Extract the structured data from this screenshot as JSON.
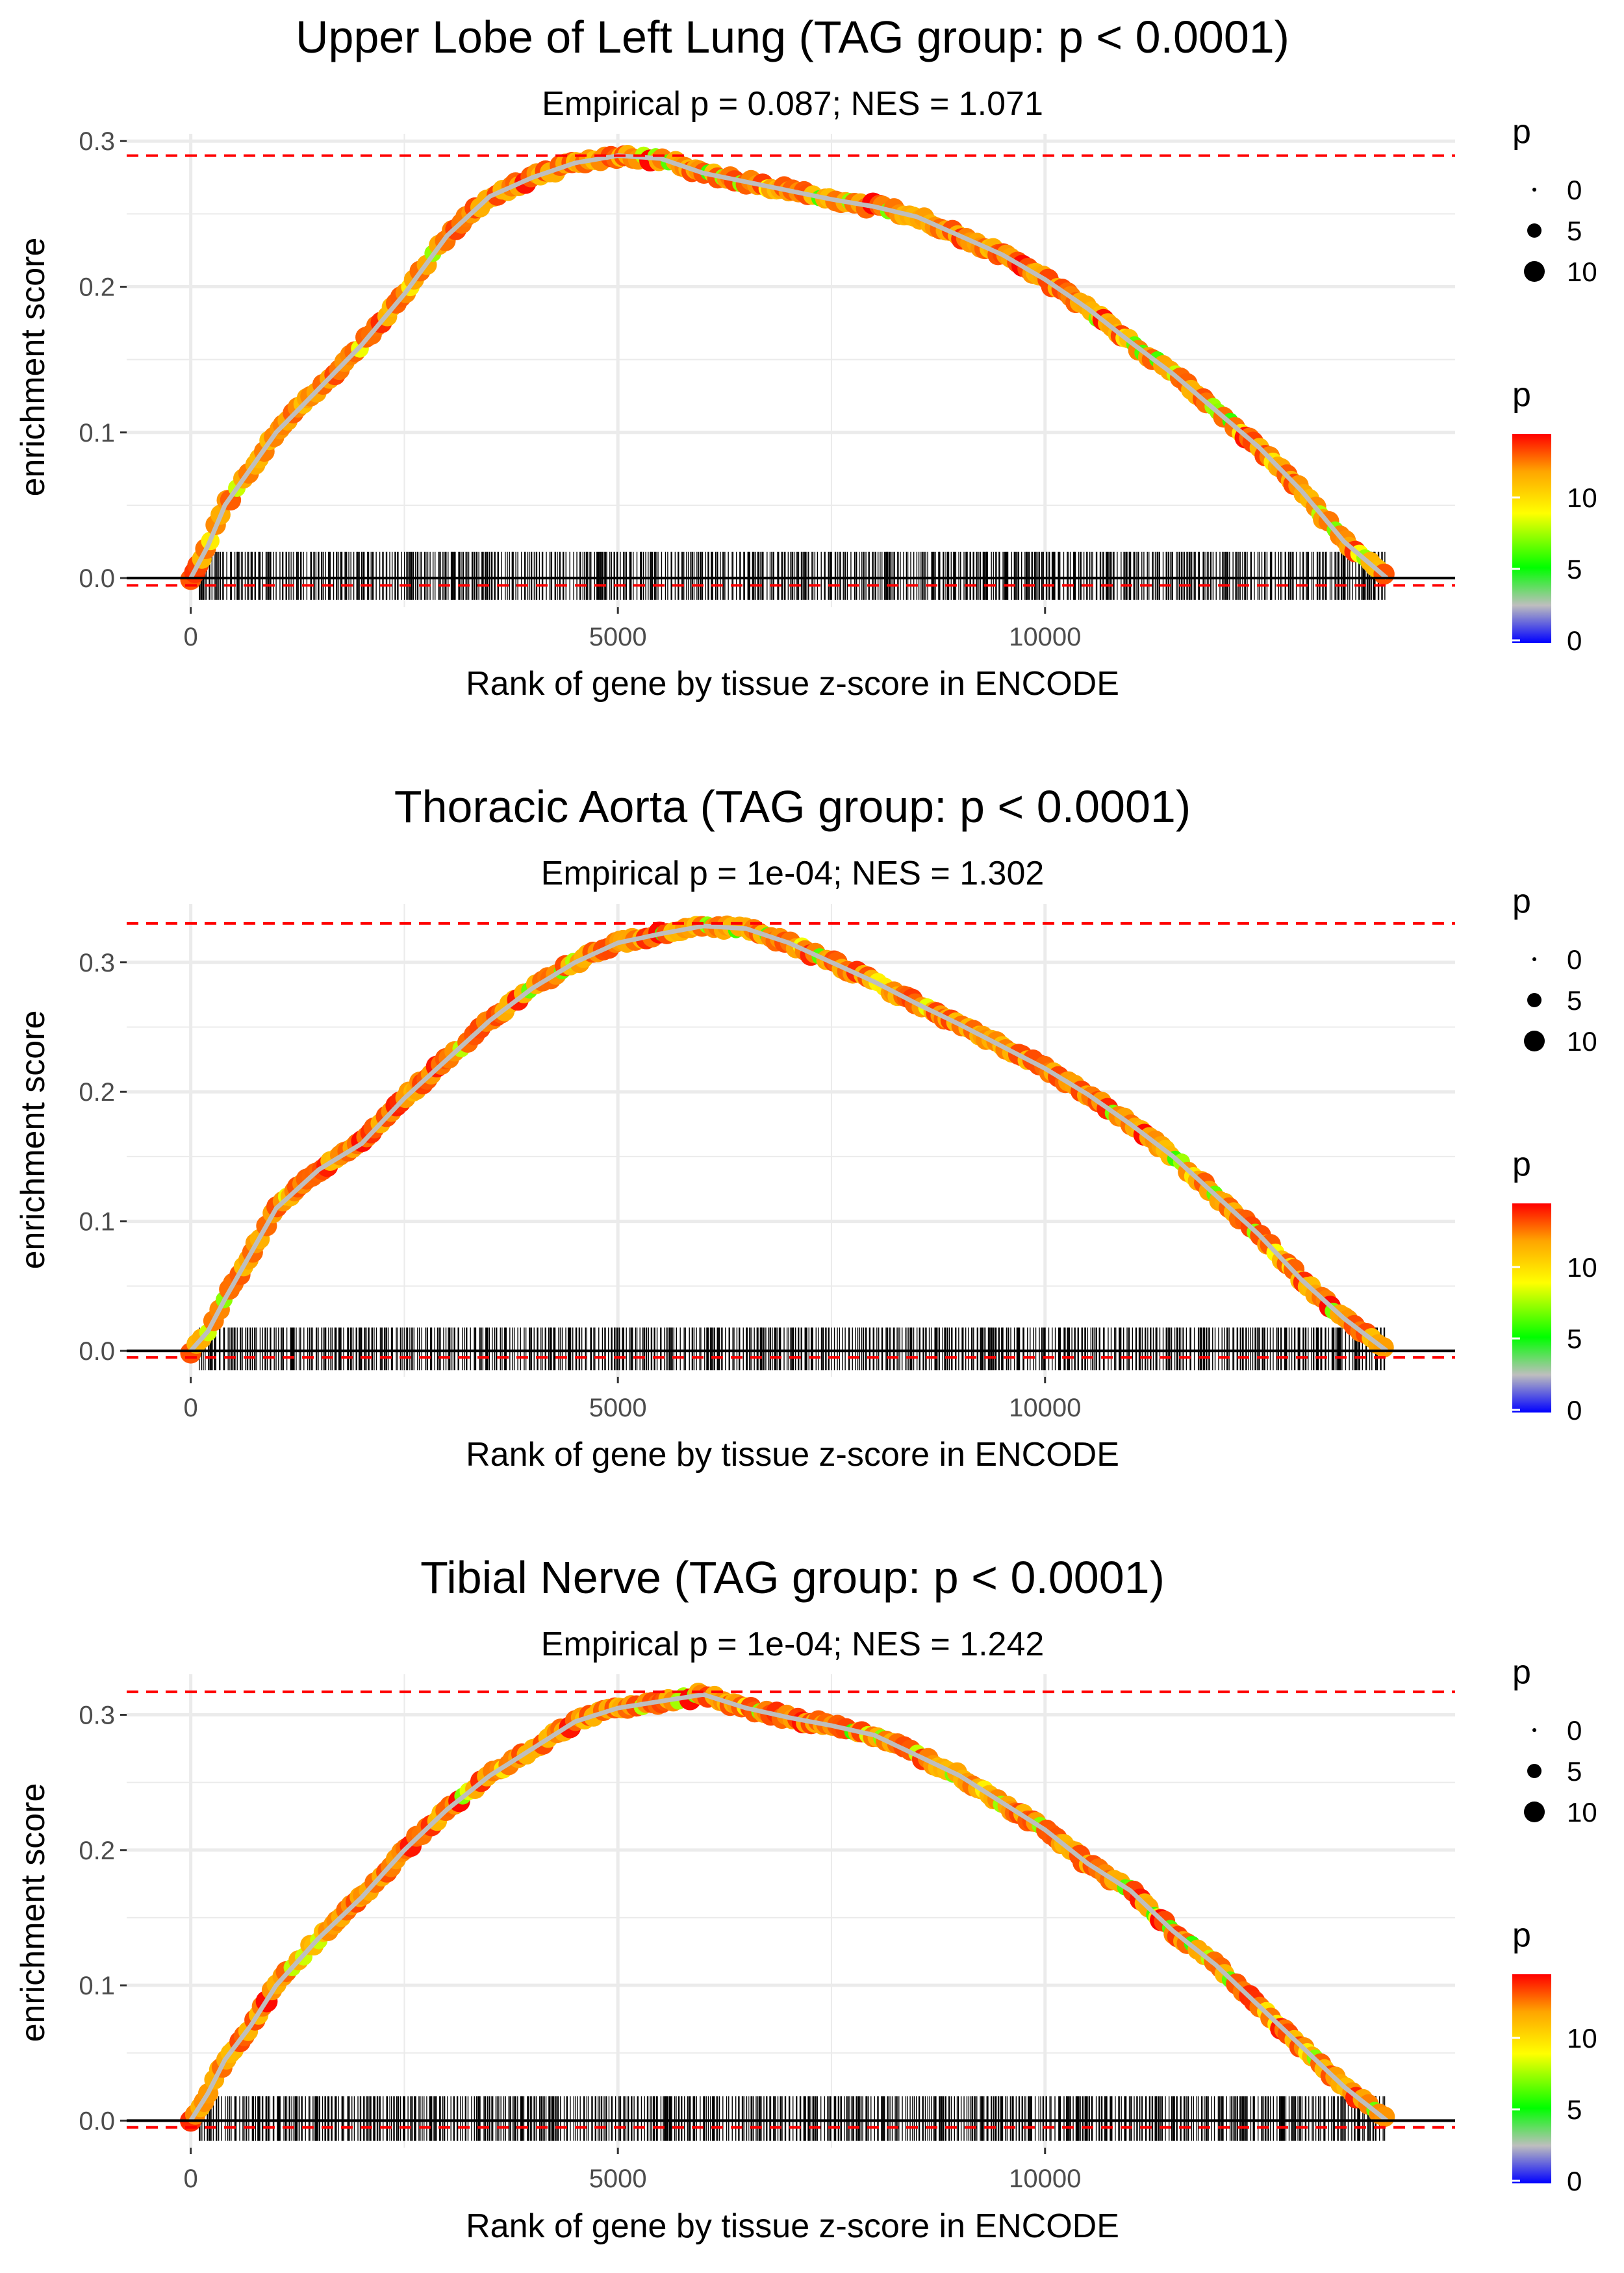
{
  "chart_data": [
    {
      "type": "line",
      "title": "Upper Lobe of Left Lung (TAG group: p < 0.0001)",
      "subtitle": "Empirical p = 0.087; NES = 1.071",
      "xlabel": "Rank of gene by tissue z-score in ENCODE",
      "ylabel": "enrichment score",
      "xlim": [
        -750,
        14800
      ],
      "ylim": [
        -0.02,
        0.305
      ],
      "x_ticks": [
        0,
        5000,
        10000
      ],
      "x_tick_labels": [
        "0",
        "5000",
        "10000"
      ],
      "y_ticks": [
        0.0,
        0.1,
        0.2,
        0.3
      ],
      "y_tick_labels": [
        "0.0",
        "0.1",
        "0.2",
        "0.3"
      ],
      "max_es": 0.29,
      "min_es": -0.005,
      "curve": {
        "x": [
          0,
          200,
          400,
          700,
          1000,
          1500,
          2000,
          2500,
          3000,
          3500,
          4000,
          4500,
          5000,
          5500,
          6000,
          6500,
          7000,
          7500,
          8000,
          8500,
          9000,
          9500,
          10000,
          10500,
          11000,
          11500,
          12000,
          12500,
          13000,
          13500,
          14000
        ],
        "y": [
          0.0,
          0.022,
          0.05,
          0.075,
          0.1,
          0.13,
          0.16,
          0.195,
          0.235,
          0.262,
          0.275,
          0.285,
          0.29,
          0.288,
          0.278,
          0.272,
          0.266,
          0.26,
          0.255,
          0.248,
          0.235,
          0.222,
          0.205,
          0.185,
          0.162,
          0.14,
          0.115,
          0.09,
          0.06,
          0.025,
          0.0
        ]
      },
      "rug": {
        "x_start": 100,
        "x_end": 14000,
        "ymin": -0.015,
        "ymax": 0.018
      },
      "size_legend": {
        "title": "p",
        "labels": [
          "0",
          "5",
          "10"
        ]
      },
      "color_legend": {
        "title": "p",
        "labels": [
          "0",
          "5",
          "10"
        ],
        "range": [
          0,
          14.5
        ]
      }
    },
    {
      "type": "line",
      "title": "Thoracic Aorta (TAG group: p < 0.0001)",
      "subtitle": "Empirical p = 1e-04; NES = 1.302",
      "xlabel": "Rank of gene by tissue z-score in ENCODE",
      "ylabel": "enrichment score",
      "xlim": [
        -750,
        14800
      ],
      "ylim": [
        -0.02,
        0.345
      ],
      "x_ticks": [
        0,
        5000,
        10000
      ],
      "x_tick_labels": [
        "0",
        "5000",
        "10000"
      ],
      "y_ticks": [
        0.0,
        0.1,
        0.2,
        0.3
      ],
      "y_tick_labels": [
        "0.0",
        "0.1",
        "0.2",
        "0.3"
      ],
      "max_es": 0.33,
      "min_es": -0.005,
      "curve": {
        "x": [
          0,
          200,
          400,
          700,
          1000,
          1500,
          2000,
          2500,
          3000,
          3500,
          4000,
          4500,
          5000,
          5500,
          6000,
          6500,
          7000,
          7500,
          8000,
          8500,
          9000,
          9500,
          10000,
          10500,
          11000,
          11500,
          12000,
          12500,
          13000,
          13500,
          14000
        ],
        "y": [
          0.0,
          0.015,
          0.04,
          0.075,
          0.11,
          0.14,
          0.16,
          0.195,
          0.225,
          0.255,
          0.28,
          0.3,
          0.315,
          0.322,
          0.328,
          0.326,
          0.315,
          0.3,
          0.285,
          0.268,
          0.252,
          0.235,
          0.218,
          0.198,
          0.175,
          0.15,
          0.12,
          0.09,
          0.055,
          0.025,
          0.0
        ]
      },
      "rug": {
        "x_start": 100,
        "x_end": 14000,
        "ymin": -0.015,
        "ymax": 0.018
      },
      "size_legend": {
        "title": "p",
        "labels": [
          "0",
          "5",
          "10"
        ]
      },
      "color_legend": {
        "title": "p",
        "labels": [
          "0",
          "5",
          "10"
        ],
        "range": [
          0,
          14.5
        ]
      }
    },
    {
      "type": "line",
      "title": "Tibial Nerve (TAG group: p < 0.0001)",
      "subtitle": "Empirical p = 1e-04; NES = 1.242",
      "xlabel": "Rank of gene by tissue z-score in ENCODE",
      "ylabel": "enrichment score",
      "xlim": [
        -750,
        14800
      ],
      "ylim": [
        -0.02,
        0.33
      ],
      "x_ticks": [
        0,
        5000,
        10000
      ],
      "x_tick_labels": [
        "0",
        "5000",
        "10000"
      ],
      "y_ticks": [
        0.0,
        0.1,
        0.2,
        0.3
      ],
      "y_tick_labels": [
        "0.0",
        "0.1",
        "0.2",
        "0.3"
      ],
      "max_es": 0.317,
      "min_es": -0.005,
      "curve": {
        "x": [
          0,
          200,
          400,
          700,
          1000,
          1500,
          2000,
          2500,
          3000,
          3500,
          4000,
          4500,
          5000,
          5500,
          6000,
          6500,
          7000,
          7500,
          8000,
          8500,
          9000,
          9500,
          10000,
          10500,
          11000,
          11500,
          12000,
          12500,
          13000,
          13500,
          14000
        ],
        "y": [
          0.0,
          0.02,
          0.045,
          0.07,
          0.1,
          0.135,
          0.165,
          0.2,
          0.23,
          0.255,
          0.275,
          0.295,
          0.305,
          0.31,
          0.315,
          0.305,
          0.298,
          0.292,
          0.285,
          0.27,
          0.255,
          0.235,
          0.215,
          0.19,
          0.17,
          0.14,
          0.115,
          0.085,
          0.055,
          0.025,
          0.0
        ]
      },
      "rug": {
        "x_start": 100,
        "x_end": 14000,
        "ymin": -0.015,
        "ymax": 0.018
      },
      "size_legend": {
        "title": "p",
        "labels": [
          "0",
          "5",
          "10"
        ]
      },
      "color_legend": {
        "title": "p",
        "labels": [
          "0",
          "5",
          "10"
        ],
        "range": [
          0,
          14.5
        ]
      }
    }
  ],
  "colors": {
    "gridline": "#ebebeb",
    "max_line": "#ff0000",
    "curve_line": "#bebebe",
    "rug": "#000000",
    "zero_line": "#000000",
    "gradient": [
      "#0000ff",
      "#bebebe",
      "#00ff00",
      "#ffff00",
      "#ffa500",
      "#ff0000"
    ]
  }
}
